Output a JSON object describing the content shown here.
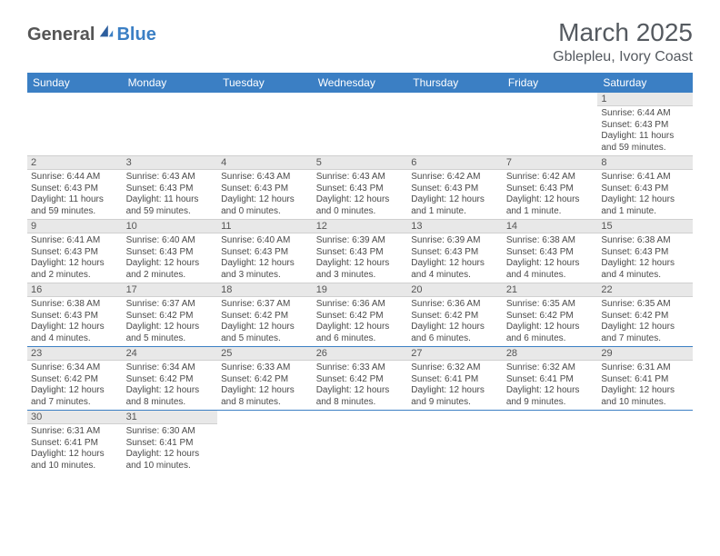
{
  "logo": {
    "text1": "General",
    "text2": "Blue"
  },
  "title": "March 2025",
  "location": "Gblepleu, Ivory Coast",
  "colors": {
    "header_bg": "#3b7fc4",
    "header_text": "#ffffff",
    "daynum_bg": "#e8e8e8",
    "border": "#cfcfcf",
    "accent_border": "#3b7fc4",
    "text": "#4a4a4a",
    "title_text": "#555a60"
  },
  "day_headers": [
    "Sunday",
    "Monday",
    "Tuesday",
    "Wednesday",
    "Thursday",
    "Friday",
    "Saturday"
  ],
  "weeks": [
    [
      null,
      null,
      null,
      null,
      null,
      null,
      {
        "n": "1",
        "sr": "Sunrise: 6:44 AM",
        "ss": "Sunset: 6:43 PM",
        "dl": "Daylight: 11 hours and 59 minutes."
      }
    ],
    [
      {
        "n": "2",
        "sr": "Sunrise: 6:44 AM",
        "ss": "Sunset: 6:43 PM",
        "dl": "Daylight: 11 hours and 59 minutes."
      },
      {
        "n": "3",
        "sr": "Sunrise: 6:43 AM",
        "ss": "Sunset: 6:43 PM",
        "dl": "Daylight: 11 hours and 59 minutes."
      },
      {
        "n": "4",
        "sr": "Sunrise: 6:43 AM",
        "ss": "Sunset: 6:43 PM",
        "dl": "Daylight: 12 hours and 0 minutes."
      },
      {
        "n": "5",
        "sr": "Sunrise: 6:43 AM",
        "ss": "Sunset: 6:43 PM",
        "dl": "Daylight: 12 hours and 0 minutes."
      },
      {
        "n": "6",
        "sr": "Sunrise: 6:42 AM",
        "ss": "Sunset: 6:43 PM",
        "dl": "Daylight: 12 hours and 1 minute."
      },
      {
        "n": "7",
        "sr": "Sunrise: 6:42 AM",
        "ss": "Sunset: 6:43 PM",
        "dl": "Daylight: 12 hours and 1 minute."
      },
      {
        "n": "8",
        "sr": "Sunrise: 6:41 AM",
        "ss": "Sunset: 6:43 PM",
        "dl": "Daylight: 12 hours and 1 minute."
      }
    ],
    [
      {
        "n": "9",
        "sr": "Sunrise: 6:41 AM",
        "ss": "Sunset: 6:43 PM",
        "dl": "Daylight: 12 hours and 2 minutes."
      },
      {
        "n": "10",
        "sr": "Sunrise: 6:40 AM",
        "ss": "Sunset: 6:43 PM",
        "dl": "Daylight: 12 hours and 2 minutes."
      },
      {
        "n": "11",
        "sr": "Sunrise: 6:40 AM",
        "ss": "Sunset: 6:43 PM",
        "dl": "Daylight: 12 hours and 3 minutes."
      },
      {
        "n": "12",
        "sr": "Sunrise: 6:39 AM",
        "ss": "Sunset: 6:43 PM",
        "dl": "Daylight: 12 hours and 3 minutes."
      },
      {
        "n": "13",
        "sr": "Sunrise: 6:39 AM",
        "ss": "Sunset: 6:43 PM",
        "dl": "Daylight: 12 hours and 4 minutes."
      },
      {
        "n": "14",
        "sr": "Sunrise: 6:38 AM",
        "ss": "Sunset: 6:43 PM",
        "dl": "Daylight: 12 hours and 4 minutes."
      },
      {
        "n": "15",
        "sr": "Sunrise: 6:38 AM",
        "ss": "Sunset: 6:43 PM",
        "dl": "Daylight: 12 hours and 4 minutes."
      }
    ],
    [
      {
        "n": "16",
        "sr": "Sunrise: 6:38 AM",
        "ss": "Sunset: 6:43 PM",
        "dl": "Daylight: 12 hours and 4 minutes."
      },
      {
        "n": "17",
        "sr": "Sunrise: 6:37 AM",
        "ss": "Sunset: 6:42 PM",
        "dl": "Daylight: 12 hours and 5 minutes."
      },
      {
        "n": "18",
        "sr": "Sunrise: 6:37 AM",
        "ss": "Sunset: 6:42 PM",
        "dl": "Daylight: 12 hours and 5 minutes."
      },
      {
        "n": "19",
        "sr": "Sunrise: 6:36 AM",
        "ss": "Sunset: 6:42 PM",
        "dl": "Daylight: 12 hours and 6 minutes."
      },
      {
        "n": "20",
        "sr": "Sunrise: 6:36 AM",
        "ss": "Sunset: 6:42 PM",
        "dl": "Daylight: 12 hours and 6 minutes."
      },
      {
        "n": "21",
        "sr": "Sunrise: 6:35 AM",
        "ss": "Sunset: 6:42 PM",
        "dl": "Daylight: 12 hours and 6 minutes."
      },
      {
        "n": "22",
        "sr": "Sunrise: 6:35 AM",
        "ss": "Sunset: 6:42 PM",
        "dl": "Daylight: 12 hours and 7 minutes."
      }
    ],
    [
      {
        "n": "23",
        "sr": "Sunrise: 6:34 AM",
        "ss": "Sunset: 6:42 PM",
        "dl": "Daylight: 12 hours and 7 minutes."
      },
      {
        "n": "24",
        "sr": "Sunrise: 6:34 AM",
        "ss": "Sunset: 6:42 PM",
        "dl": "Daylight: 12 hours and 8 minutes."
      },
      {
        "n": "25",
        "sr": "Sunrise: 6:33 AM",
        "ss": "Sunset: 6:42 PM",
        "dl": "Daylight: 12 hours and 8 minutes."
      },
      {
        "n": "26",
        "sr": "Sunrise: 6:33 AM",
        "ss": "Sunset: 6:42 PM",
        "dl": "Daylight: 12 hours and 8 minutes."
      },
      {
        "n": "27",
        "sr": "Sunrise: 6:32 AM",
        "ss": "Sunset: 6:41 PM",
        "dl": "Daylight: 12 hours and 9 minutes."
      },
      {
        "n": "28",
        "sr": "Sunrise: 6:32 AM",
        "ss": "Sunset: 6:41 PM",
        "dl": "Daylight: 12 hours and 9 minutes."
      },
      {
        "n": "29",
        "sr": "Sunrise: 6:31 AM",
        "ss": "Sunset: 6:41 PM",
        "dl": "Daylight: 12 hours and 10 minutes."
      }
    ],
    [
      {
        "n": "30",
        "sr": "Sunrise: 6:31 AM",
        "ss": "Sunset: 6:41 PM",
        "dl": "Daylight: 12 hours and 10 minutes."
      },
      {
        "n": "31",
        "sr": "Sunrise: 6:30 AM",
        "ss": "Sunset: 6:41 PM",
        "dl": "Daylight: 12 hours and 10 minutes."
      },
      null,
      null,
      null,
      null,
      null
    ]
  ]
}
